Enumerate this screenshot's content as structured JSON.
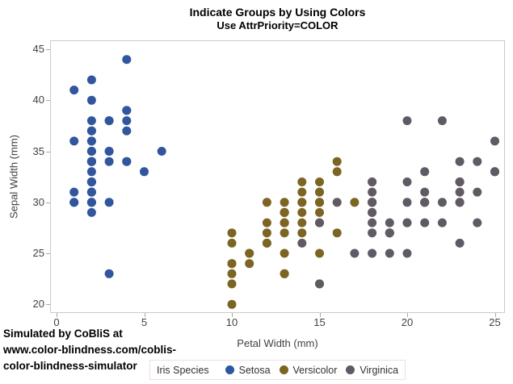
{
  "figure": {
    "title": "Indicate Groups by Using Colors",
    "subtitle": "Use AttrPriority=COLOR"
  },
  "watermark": {
    "line1": "Simulated by CoBliS at",
    "line2": "www.color-blindness.com/coblis-",
    "line3": "color-blindness-simulator"
  },
  "colors": {
    "background": "#FFFFFF",
    "plot_border": "#D3C6C6",
    "tick_mark": "#B3A5A5",
    "tick_label": "#443F3F",
    "axis_title": "#443F3F",
    "title_text": "#000000",
    "legend_border": "#F2DEDE",
    "legend_text": "#333333",
    "watermark_text": "#000000",
    "setosa": "#31569E",
    "versicolor": "#7C6423",
    "virginica": "#605A64"
  },
  "chart_data": {
    "type": "scatter",
    "title": "Indicate Groups by Using Colors",
    "subtitle": "Use AttrPriority=COLOR",
    "xlabel": "Petal Width (mm)",
    "ylabel": "Sepal Width (mm)",
    "xlim": [
      -0.4,
      25.6
    ],
    "ylim": [
      19.1,
      45.9
    ],
    "xticks": [
      0,
      5,
      10,
      15,
      20,
      25
    ],
    "yticks": [
      20,
      25,
      30,
      35,
      40,
      45
    ],
    "grid": false,
    "marker": "filled-circle",
    "legend": {
      "title": "Iris Species",
      "position": "bottom-center"
    },
    "series": [
      {
        "name": "Setosa",
        "color": "#31569E",
        "points": [
          [
            2,
            35
          ],
          [
            2,
            30
          ],
          [
            2,
            32
          ],
          [
            2,
            31
          ],
          [
            2,
            36
          ],
          [
            4,
            39
          ],
          [
            3,
            34
          ],
          [
            2,
            34
          ],
          [
            2,
            29
          ],
          [
            1,
            31
          ],
          [
            2,
            37
          ],
          [
            2,
            34
          ],
          [
            1,
            30
          ],
          [
            1,
            30
          ],
          [
            2,
            40
          ],
          [
            4,
            44
          ],
          [
            4,
            39
          ],
          [
            3,
            35
          ],
          [
            3,
            38
          ],
          [
            3,
            38
          ],
          [
            2,
            34
          ],
          [
            4,
            37
          ],
          [
            2,
            36
          ],
          [
            5,
            33
          ],
          [
            2,
            34
          ],
          [
            2,
            30
          ],
          [
            4,
            34
          ],
          [
            2,
            35
          ],
          [
            2,
            34
          ],
          [
            2,
            32
          ],
          [
            2,
            31
          ],
          [
            4,
            34
          ],
          [
            1,
            41
          ],
          [
            2,
            42
          ],
          [
            2,
            31
          ],
          [
            2,
            32
          ],
          [
            2,
            35
          ],
          [
            1,
            36
          ],
          [
            2,
            30
          ],
          [
            2,
            34
          ],
          [
            3,
            35
          ],
          [
            3,
            23
          ],
          [
            2,
            32
          ],
          [
            6,
            35
          ],
          [
            4,
            38
          ],
          [
            3,
            30
          ],
          [
            2,
            38
          ],
          [
            2,
            32
          ],
          [
            2,
            37
          ],
          [
            2,
            33
          ]
        ]
      },
      {
        "name": "Versicolor",
        "color": "#7C6423",
        "points": [
          [
            14,
            32
          ],
          [
            15,
            32
          ],
          [
            15,
            31
          ],
          [
            13,
            23
          ],
          [
            15,
            28
          ],
          [
            13,
            28
          ],
          [
            16,
            33
          ],
          [
            10,
            24
          ],
          [
            13,
            29
          ],
          [
            14,
            27
          ],
          [
            10,
            20
          ],
          [
            15,
            30
          ],
          [
            10,
            22
          ],
          [
            14,
            29
          ],
          [
            13,
            29
          ],
          [
            14,
            31
          ],
          [
            15,
            30
          ],
          [
            10,
            27
          ],
          [
            15,
            22
          ],
          [
            11,
            25
          ],
          [
            18,
            32
          ],
          [
            13,
            28
          ],
          [
            15,
            25
          ],
          [
            12,
            28
          ],
          [
            13,
            29
          ],
          [
            14,
            30
          ],
          [
            14,
            28
          ],
          [
            17,
            30
          ],
          [
            15,
            29
          ],
          [
            10,
            26
          ],
          [
            11,
            24
          ],
          [
            10,
            24
          ],
          [
            12,
            27
          ],
          [
            16,
            27
          ],
          [
            15,
            30
          ],
          [
            16,
            34
          ],
          [
            15,
            31
          ],
          [
            13,
            23
          ],
          [
            13,
            30
          ],
          [
            13,
            25
          ],
          [
            12,
            26
          ],
          [
            14,
            30
          ],
          [
            12,
            26
          ],
          [
            10,
            23
          ],
          [
            13,
            27
          ],
          [
            12,
            30
          ],
          [
            13,
            29
          ],
          [
            13,
            29
          ],
          [
            11,
            25
          ],
          [
            13,
            28
          ]
        ]
      },
      {
        "name": "Virginica",
        "color": "#605A64",
        "points": [
          [
            25,
            33
          ],
          [
            19,
            27
          ],
          [
            21,
            30
          ],
          [
            18,
            29
          ],
          [
            22,
            30
          ],
          [
            21,
            30
          ],
          [
            17,
            25
          ],
          [
            18,
            29
          ],
          [
            18,
            25
          ],
          [
            25,
            36
          ],
          [
            20,
            32
          ],
          [
            19,
            27
          ],
          [
            21,
            30
          ],
          [
            20,
            25
          ],
          [
            24,
            28
          ],
          [
            23,
            32
          ],
          [
            18,
            30
          ],
          [
            22,
            38
          ],
          [
            23,
            26
          ],
          [
            15,
            22
          ],
          [
            23,
            32
          ],
          [
            20,
            28
          ],
          [
            20,
            28
          ],
          [
            18,
            27
          ],
          [
            21,
            33
          ],
          [
            18,
            32
          ],
          [
            18,
            28
          ],
          [
            18,
            30
          ],
          [
            21,
            28
          ],
          [
            16,
            30
          ],
          [
            19,
            28
          ],
          [
            20,
            38
          ],
          [
            22,
            28
          ],
          [
            15,
            28
          ],
          [
            14,
            26
          ],
          [
            23,
            30
          ],
          [
            24,
            34
          ],
          [
            18,
            31
          ],
          [
            18,
            30
          ],
          [
            21,
            31
          ],
          [
            24,
            31
          ],
          [
            23,
            31
          ],
          [
            19,
            27
          ],
          [
            23,
            32
          ],
          [
            25,
            33
          ],
          [
            23,
            30
          ],
          [
            19,
            25
          ],
          [
            20,
            30
          ],
          [
            23,
            34
          ],
          [
            18,
            30
          ]
        ]
      }
    ]
  }
}
